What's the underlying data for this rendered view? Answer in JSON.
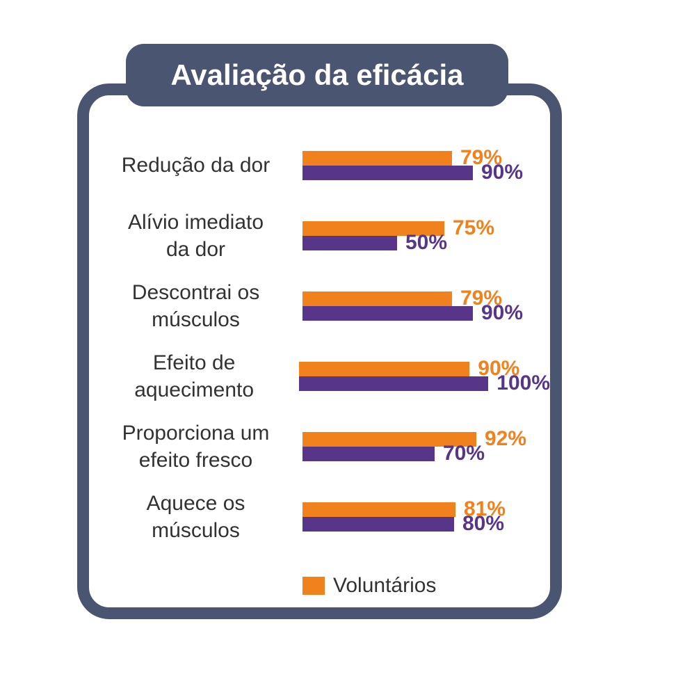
{
  "header": {
    "title": "Avaliação da eficácia"
  },
  "colors": {
    "frame": "#4A5571",
    "card_background": "#ffffff",
    "voluntarios_orange": "#F0811C",
    "comparison_purple": "#573589",
    "label_text": "#323232",
    "title_text": "#ffffff"
  },
  "chart_data": {
    "type": "bar",
    "orientation": "horizontal",
    "title": "Avaliação da eficácia",
    "categories": [
      "Redução da dor",
      "Alívio imediato\nda dor",
      "Descontrai os\nmúsculos",
      "Efeito de\naquecimento",
      "Proporciona um\nefeito fresco",
      "Aquece os\nmúsculos"
    ],
    "series": [
      {
        "name": "Voluntários",
        "color": "#F0811C",
        "values": [
          79,
          75,
          79,
          90,
          92,
          81
        ]
      },
      {
        "name": "",
        "color": "#573589",
        "values": [
          90,
          50,
          90,
          100,
          70,
          80
        ]
      }
    ],
    "value_suffix": "%",
    "xlim": [
      0,
      100
    ],
    "grid": false,
    "legend": {
      "position": "bottom",
      "items": [
        {
          "label": "Voluntários",
          "color": "#F0811C"
        }
      ]
    }
  },
  "legend": {
    "label": "Voluntários"
  }
}
